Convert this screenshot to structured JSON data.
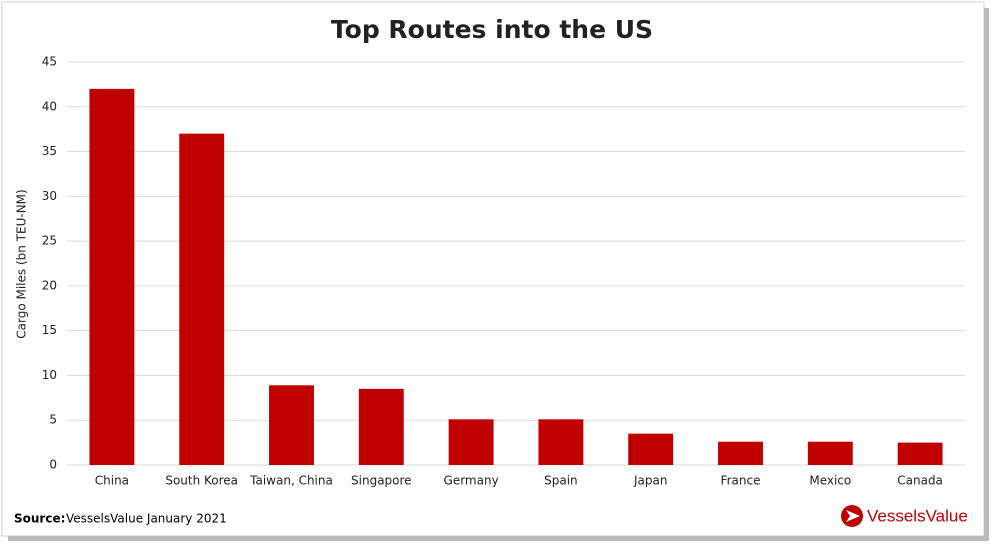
{
  "chart_data": {
    "type": "bar",
    "title": "Top Routes into the US",
    "y_label": "Cargo Miles (bn TEU-NM)",
    "categories": [
      "China",
      "South Korea",
      "Taiwan, China",
      "Singapore",
      "Germany",
      "Spain",
      "Japan",
      "France",
      "Mexico",
      "Canada"
    ],
    "values": [
      42,
      37,
      8.9,
      8.5,
      5.1,
      5.1,
      3.5,
      2.6,
      2.6,
      2.5
    ],
    "color": "#c00000",
    "ylim": [
      0,
      45
    ],
    "yticks": [
      0,
      5,
      10,
      15,
      20,
      25,
      30,
      35,
      40,
      45
    ],
    "grid": true,
    "source_label": "Source:",
    "source_text": "VesselsValue January 2021",
    "logo": "VesselsValue"
  }
}
